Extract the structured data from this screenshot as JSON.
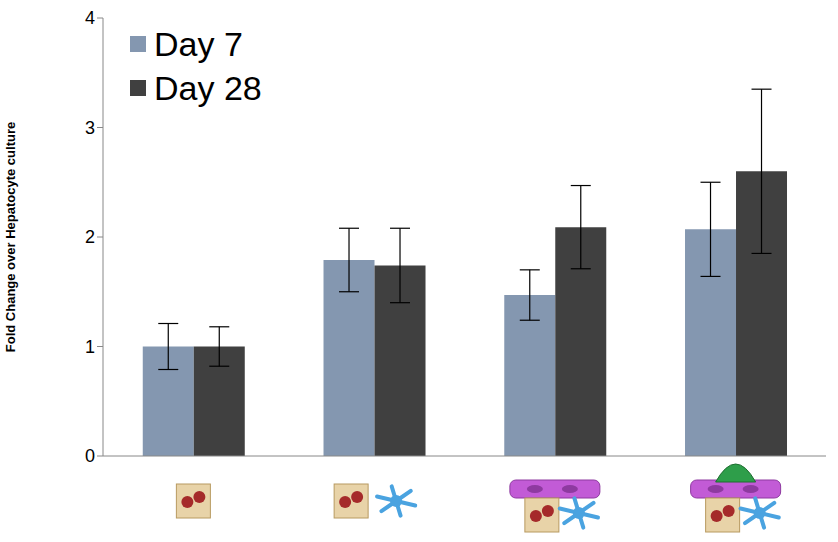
{
  "chart_data": {
    "type": "bar",
    "y_label": "Fold Change over Hepatocyte culture",
    "categories": [
      null,
      null,
      null,
      null
    ],
    "series": [
      {
        "name": "Day 7",
        "color": "#8497b0",
        "values": [
          1.0,
          1.79,
          1.47,
          2.07
        ],
        "errors": [
          0.21,
          0.29,
          0.23,
          0.43
        ]
      },
      {
        "name": "Day 28",
        "color": "#404040",
        "values": [
          1.0,
          1.74,
          2.09,
          2.6
        ],
        "errors": [
          0.18,
          0.34,
          0.38,
          0.75
        ]
      }
    ],
    "ylim": [
      0,
      4
    ],
    "yticks": [
      0,
      1,
      2,
      3,
      4
    ],
    "legend": "upper left"
  }
}
